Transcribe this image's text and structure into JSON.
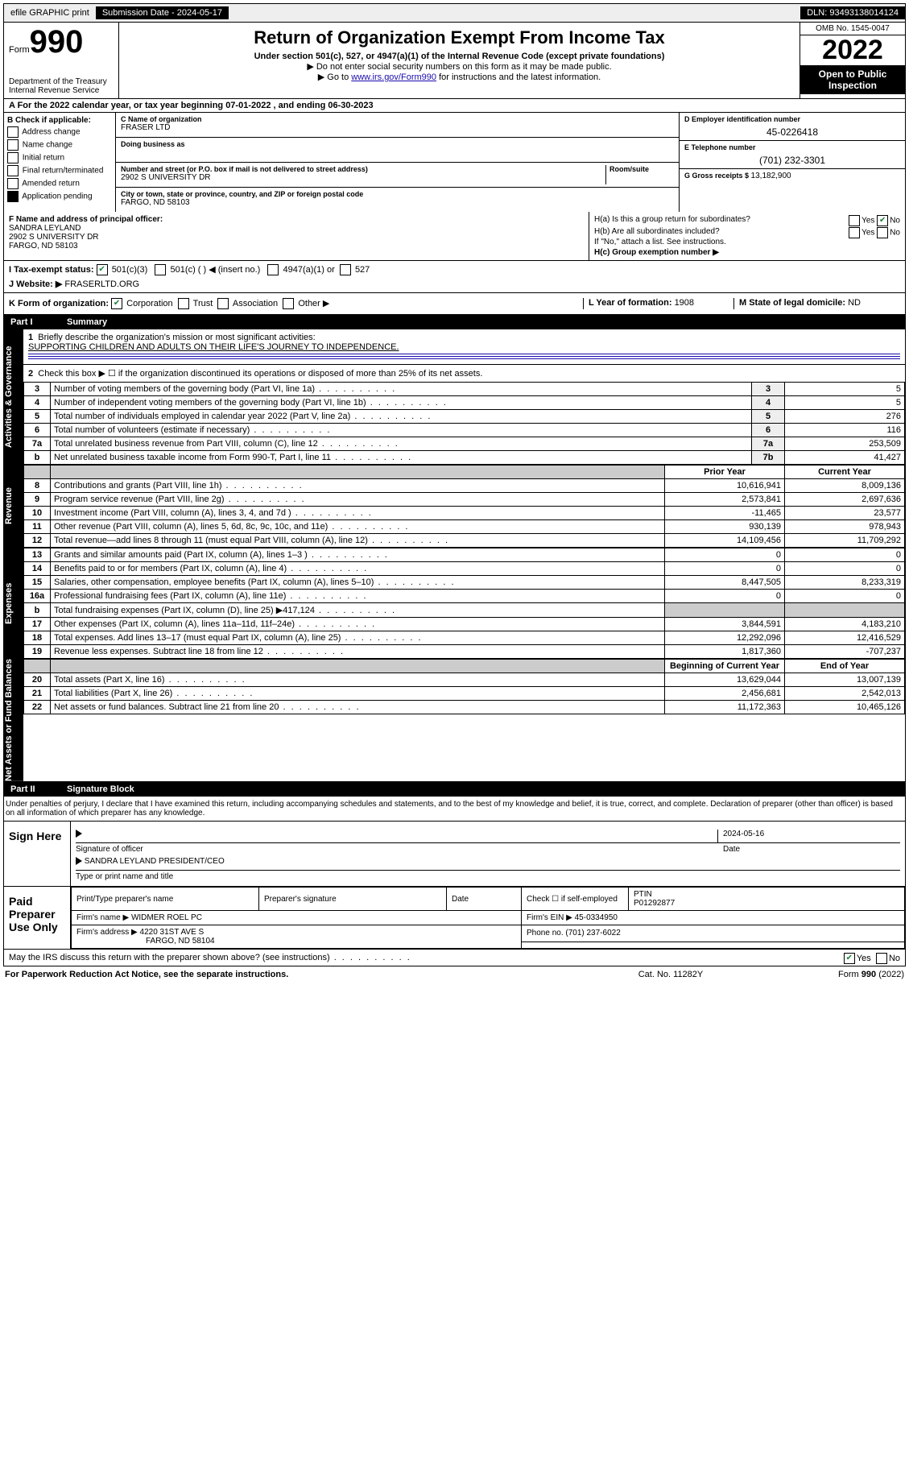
{
  "topbar": {
    "efile": "efile GRAPHIC print",
    "submission_label": "Submission Date - ",
    "submission_date": "2024-05-17",
    "dln_label": "DLN: ",
    "dln": "93493138014124"
  },
  "header": {
    "form_word": "Form",
    "form_num": "990",
    "dept1": "Department of the Treasury",
    "dept2": "Internal Revenue Service",
    "title": "Return of Organization Exempt From Income Tax",
    "sub": "Under section 501(c), 527, or 4947(a)(1) of the Internal Revenue Code (except private foundations)",
    "note1": "▶ Do not enter social security numbers on this form as it may be made public.",
    "note2_pre": "▶ Go to ",
    "note2_link": "www.irs.gov/Form990",
    "note2_post": " for instructions and the latest information.",
    "omb": "OMB No. 1545-0047",
    "year": "2022",
    "open1": "Open to Public",
    "open2": "Inspection"
  },
  "rowA": "A For the 2022 calendar year, or tax year beginning 07-01-2022   , and ending 06-30-2023",
  "colB": {
    "hdr": "B Check if applicable:",
    "opts": [
      "Address change",
      "Name change",
      "Initial return",
      "Final return/terminated",
      "Amended return",
      "Application pending"
    ]
  },
  "colC": {
    "name_lbl": "C Name of organization",
    "name": "FRASER LTD",
    "dba_lbl": "Doing business as",
    "dba": "",
    "addr_lbl": "Number and street (or P.O. box if mail is not delivered to street address)",
    "room_lbl": "Room/suite",
    "addr": "2902 S UNIVERSITY DR",
    "city_lbl": "City or town, state or province, country, and ZIP or foreign postal code",
    "city": "FARGO, ND  58103"
  },
  "colD": {
    "lbl": "D Employer identification number",
    "val": "45-0226418"
  },
  "colE": {
    "lbl": "E Telephone number",
    "val": "(701) 232-3301"
  },
  "colG": {
    "lbl": "G Gross receipts $ ",
    "val": "13,182,900"
  },
  "rowF": {
    "lbl": "F Name and address of principal officer:",
    "name": "SANDRA LEYLAND",
    "addr": "2902 S UNIVERSITY DR",
    "city": "FARGO, ND  58103",
    "ha": "H(a)  Is this a group return for subordinates?",
    "hb": "H(b)  Are all subordinates included?",
    "hb_note": "If \"No,\" attach a list. See instructions.",
    "hc": "H(c)  Group exemption number ▶",
    "yes": "Yes",
    "no": "No"
  },
  "rowI": {
    "lbl": "I   Tax-exempt status:",
    "c3": "501(c)(3)",
    "c": "501(c) (   ) ◀ (insert no.)",
    "a1": "4947(a)(1) or",
    "s527": "527"
  },
  "rowJ": {
    "lbl": "J   Website: ▶ ",
    "val": "FRASERLTD.ORG"
  },
  "rowK": {
    "lbl": "K Form of organization:",
    "corp": "Corporation",
    "trust": "Trust",
    "assoc": "Association",
    "other": "Other ▶",
    "lyr_lbl": "L Year of formation: ",
    "lyr": "1908",
    "mst_lbl": "M State of legal domicile: ",
    "mst": "ND"
  },
  "part1": {
    "pn": "Part I",
    "title": "Summary",
    "sides": {
      "ag": "Activities & Governance",
      "rev": "Revenue",
      "exp": "Expenses",
      "na": "Net Assets or Fund Balances"
    },
    "l1_lbl": "Briefly describe the organization's mission or most significant activities:",
    "l1_val": "SUPPORTING CHILDREN AND ADULTS ON THEIR LIFE'S JOURNEY TO INDEPENDENCE.",
    "l2": "Check this box ▶ ☐  if the organization discontinued its operations or disposed of more than 25% of its net assets.",
    "rows_ag": [
      {
        "n": "3",
        "t": "Number of voting members of the governing body (Part VI, line 1a)",
        "b": "3",
        "v": "5"
      },
      {
        "n": "4",
        "t": "Number of independent voting members of the governing body (Part VI, line 1b)",
        "b": "4",
        "v": "5"
      },
      {
        "n": "5",
        "t": "Total number of individuals employed in calendar year 2022 (Part V, line 2a)",
        "b": "5",
        "v": "276"
      },
      {
        "n": "6",
        "t": "Total number of volunteers (estimate if necessary)",
        "b": "6",
        "v": "116"
      },
      {
        "n": "7a",
        "t": "Total unrelated business revenue from Part VIII, column (C), line 12",
        "b": "7a",
        "v": "253,509"
      },
      {
        "n": "b",
        "t": "Net unrelated business taxable income from Form 990-T, Part I, line 11",
        "b": "7b",
        "v": "41,427"
      }
    ],
    "py_hdr": "Prior Year",
    "cy_hdr": "Current Year",
    "rows_rev": [
      {
        "n": "8",
        "t": "Contributions and grants (Part VIII, line 1h)",
        "p": "10,616,941",
        "c": "8,009,136"
      },
      {
        "n": "9",
        "t": "Program service revenue (Part VIII, line 2g)",
        "p": "2,573,841",
        "c": "2,697,636"
      },
      {
        "n": "10",
        "t": "Investment income (Part VIII, column (A), lines 3, 4, and 7d )",
        "p": "-11,465",
        "c": "23,577"
      },
      {
        "n": "11",
        "t": "Other revenue (Part VIII, column (A), lines 5, 6d, 8c, 9c, 10c, and 11e)",
        "p": "930,139",
        "c": "978,943"
      },
      {
        "n": "12",
        "t": "Total revenue—add lines 8 through 11 (must equal Part VIII, column (A), line 12)",
        "p": "14,109,456",
        "c": "11,709,292"
      }
    ],
    "rows_exp": [
      {
        "n": "13",
        "t": "Grants and similar amounts paid (Part IX, column (A), lines 1–3 )",
        "p": "0",
        "c": "0"
      },
      {
        "n": "14",
        "t": "Benefits paid to or for members (Part IX, column (A), line 4)",
        "p": "0",
        "c": "0"
      },
      {
        "n": "15",
        "t": "Salaries, other compensation, employee benefits (Part IX, column (A), lines 5–10)",
        "p": "8,447,505",
        "c": "8,233,319"
      },
      {
        "n": "16a",
        "t": "Professional fundraising fees (Part IX, column (A), line 11e)",
        "p": "0",
        "c": "0"
      },
      {
        "n": "b",
        "t": "Total fundraising expenses (Part IX, column (D), line 25) ▶417,124",
        "p": "",
        "c": "",
        "shade": true
      },
      {
        "n": "17",
        "t": "Other expenses (Part IX, column (A), lines 11a–11d, 11f–24e)",
        "p": "3,844,591",
        "c": "4,183,210"
      },
      {
        "n": "18",
        "t": "Total expenses. Add lines 13–17 (must equal Part IX, column (A), line 25)",
        "p": "12,292,096",
        "c": "12,416,529"
      },
      {
        "n": "19",
        "t": "Revenue less expenses. Subtract line 18 from line 12",
        "p": "1,817,360",
        "c": "-707,237"
      }
    ],
    "by_hdr": "Beginning of Current Year",
    "ey_hdr": "End of Year",
    "rows_na": [
      {
        "n": "20",
        "t": "Total assets (Part X, line 16)",
        "p": "13,629,044",
        "c": "13,007,139"
      },
      {
        "n": "21",
        "t": "Total liabilities (Part X, line 26)",
        "p": "2,456,681",
        "c": "2,542,013"
      },
      {
        "n": "22",
        "t": "Net assets or fund balances. Subtract line 21 from line 20",
        "p": "11,172,363",
        "c": "10,465,126"
      }
    ]
  },
  "part2": {
    "pn": "Part II",
    "title": "Signature Block",
    "penalties": "Under penalties of perjury, I declare that I have examined this return, including accompanying schedules and statements, and to the best of my knowledge and belief, it is true, correct, and complete. Declaration of preparer (other than officer) is based on all information of which preparer has any knowledge.",
    "sign_here": "Sign Here",
    "sig_officer": "Signature of officer",
    "sig_date_lbl": "Date",
    "sig_date": "2024-05-16",
    "officer_name": "SANDRA LEYLAND  PRESIDENT/CEO",
    "type_name": "Type or print name and title",
    "paid_lbl": "Paid Preparer Use Only",
    "prep_name_lbl": "Print/Type preparer's name",
    "prep_sig_lbl": "Preparer's signature",
    "date_lbl": "Date",
    "self_emp": "Check ☐ if self-employed",
    "ptin_lbl": "PTIN",
    "ptin": "P01292877",
    "firm_name_lbl": "Firm's name    ▶ ",
    "firm_name": "WIDMER ROEL PC",
    "firm_ein_lbl": "Firm's EIN ▶ ",
    "firm_ein": "45-0334950",
    "firm_addr_lbl": "Firm's address ▶ ",
    "firm_addr": "4220 31ST AVE S",
    "firm_city": "FARGO, ND  58104",
    "phone_lbl": "Phone no. ",
    "phone": "(701) 237-6022",
    "discuss": "May the IRS discuss this return with the preparer shown above? (see instructions)",
    "yes": "Yes",
    "no": "No"
  },
  "footer": {
    "pra": "For Paperwork Reduction Act Notice, see the separate instructions.",
    "cat": "Cat. No. 11282Y",
    "form": "Form 990 (2022)"
  }
}
